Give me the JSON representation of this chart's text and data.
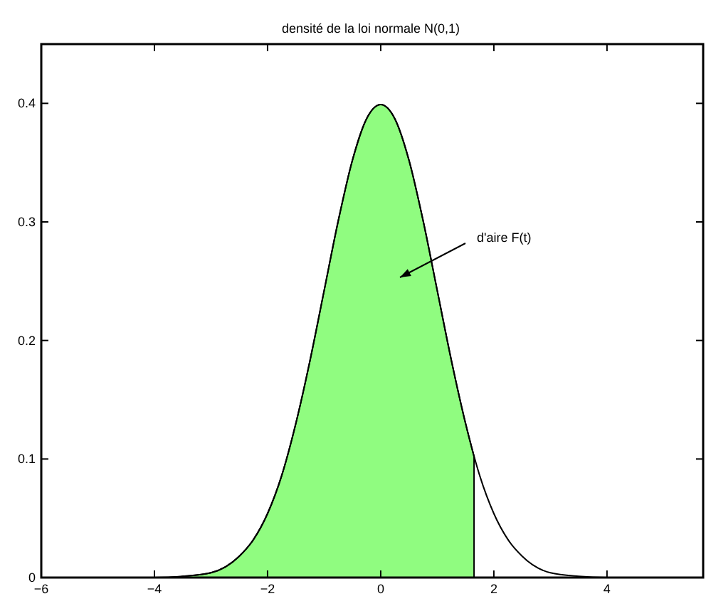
{
  "chart_data": {
    "type": "line",
    "title": "densité de la loi normale N(0,1)",
    "xlim": [
      -6,
      5.7
    ],
    "xticks": [
      -6,
      -4,
      -2,
      0,
      2,
      4
    ],
    "ylim": [
      0,
      0.45
    ],
    "yticks": [
      0,
      0.1,
      0.2,
      0.3,
      0.4
    ],
    "grid": false,
    "series": [
      {
        "type": "area",
        "color": "#90fc80",
        "x": [
          -6,
          -4,
          -3.5,
          -3,
          -2.5,
          -2.25,
          -2,
          -1.75,
          -1.5,
          -1.25,
          -1,
          -0.75,
          -0.5,
          -0.25,
          0,
          0.25,
          0.5,
          0.75,
          1,
          1.25,
          1.5,
          1.65
        ],
        "values": [
          0,
          0,
          0.001,
          0.004,
          0.018,
          0.032,
          0.054,
          0.086,
          0.13,
          0.183,
          0.242,
          0.301,
          0.352,
          0.387,
          0.399,
          0.387,
          0.352,
          0.301,
          0.242,
          0.183,
          0.13,
          0.102
        ]
      },
      {
        "color": "#000000",
        "x": [
          -6,
          -4,
          -3.5,
          -3,
          -2.5,
          -2.25,
          -2,
          -1.75,
          -1.5,
          -1.25,
          -1,
          -0.75,
          -0.5,
          -0.25,
          0,
          0.25,
          0.5,
          0.75,
          1,
          1.25,
          1.5,
          1.75,
          2,
          2.25,
          2.5,
          3,
          3.5,
          4,
          5.7
        ],
        "values": [
          0,
          0,
          0.001,
          0.004,
          0.018,
          0.032,
          0.054,
          0.086,
          0.13,
          0.183,
          0.242,
          0.301,
          0.352,
          0.387,
          0.399,
          0.387,
          0.352,
          0.301,
          0.242,
          0.183,
          0.13,
          0.086,
          0.054,
          0.032,
          0.018,
          0.004,
          0.001,
          0,
          0
        ]
      }
    ],
    "annotations": [
      "d'aire F(t)"
    ]
  }
}
